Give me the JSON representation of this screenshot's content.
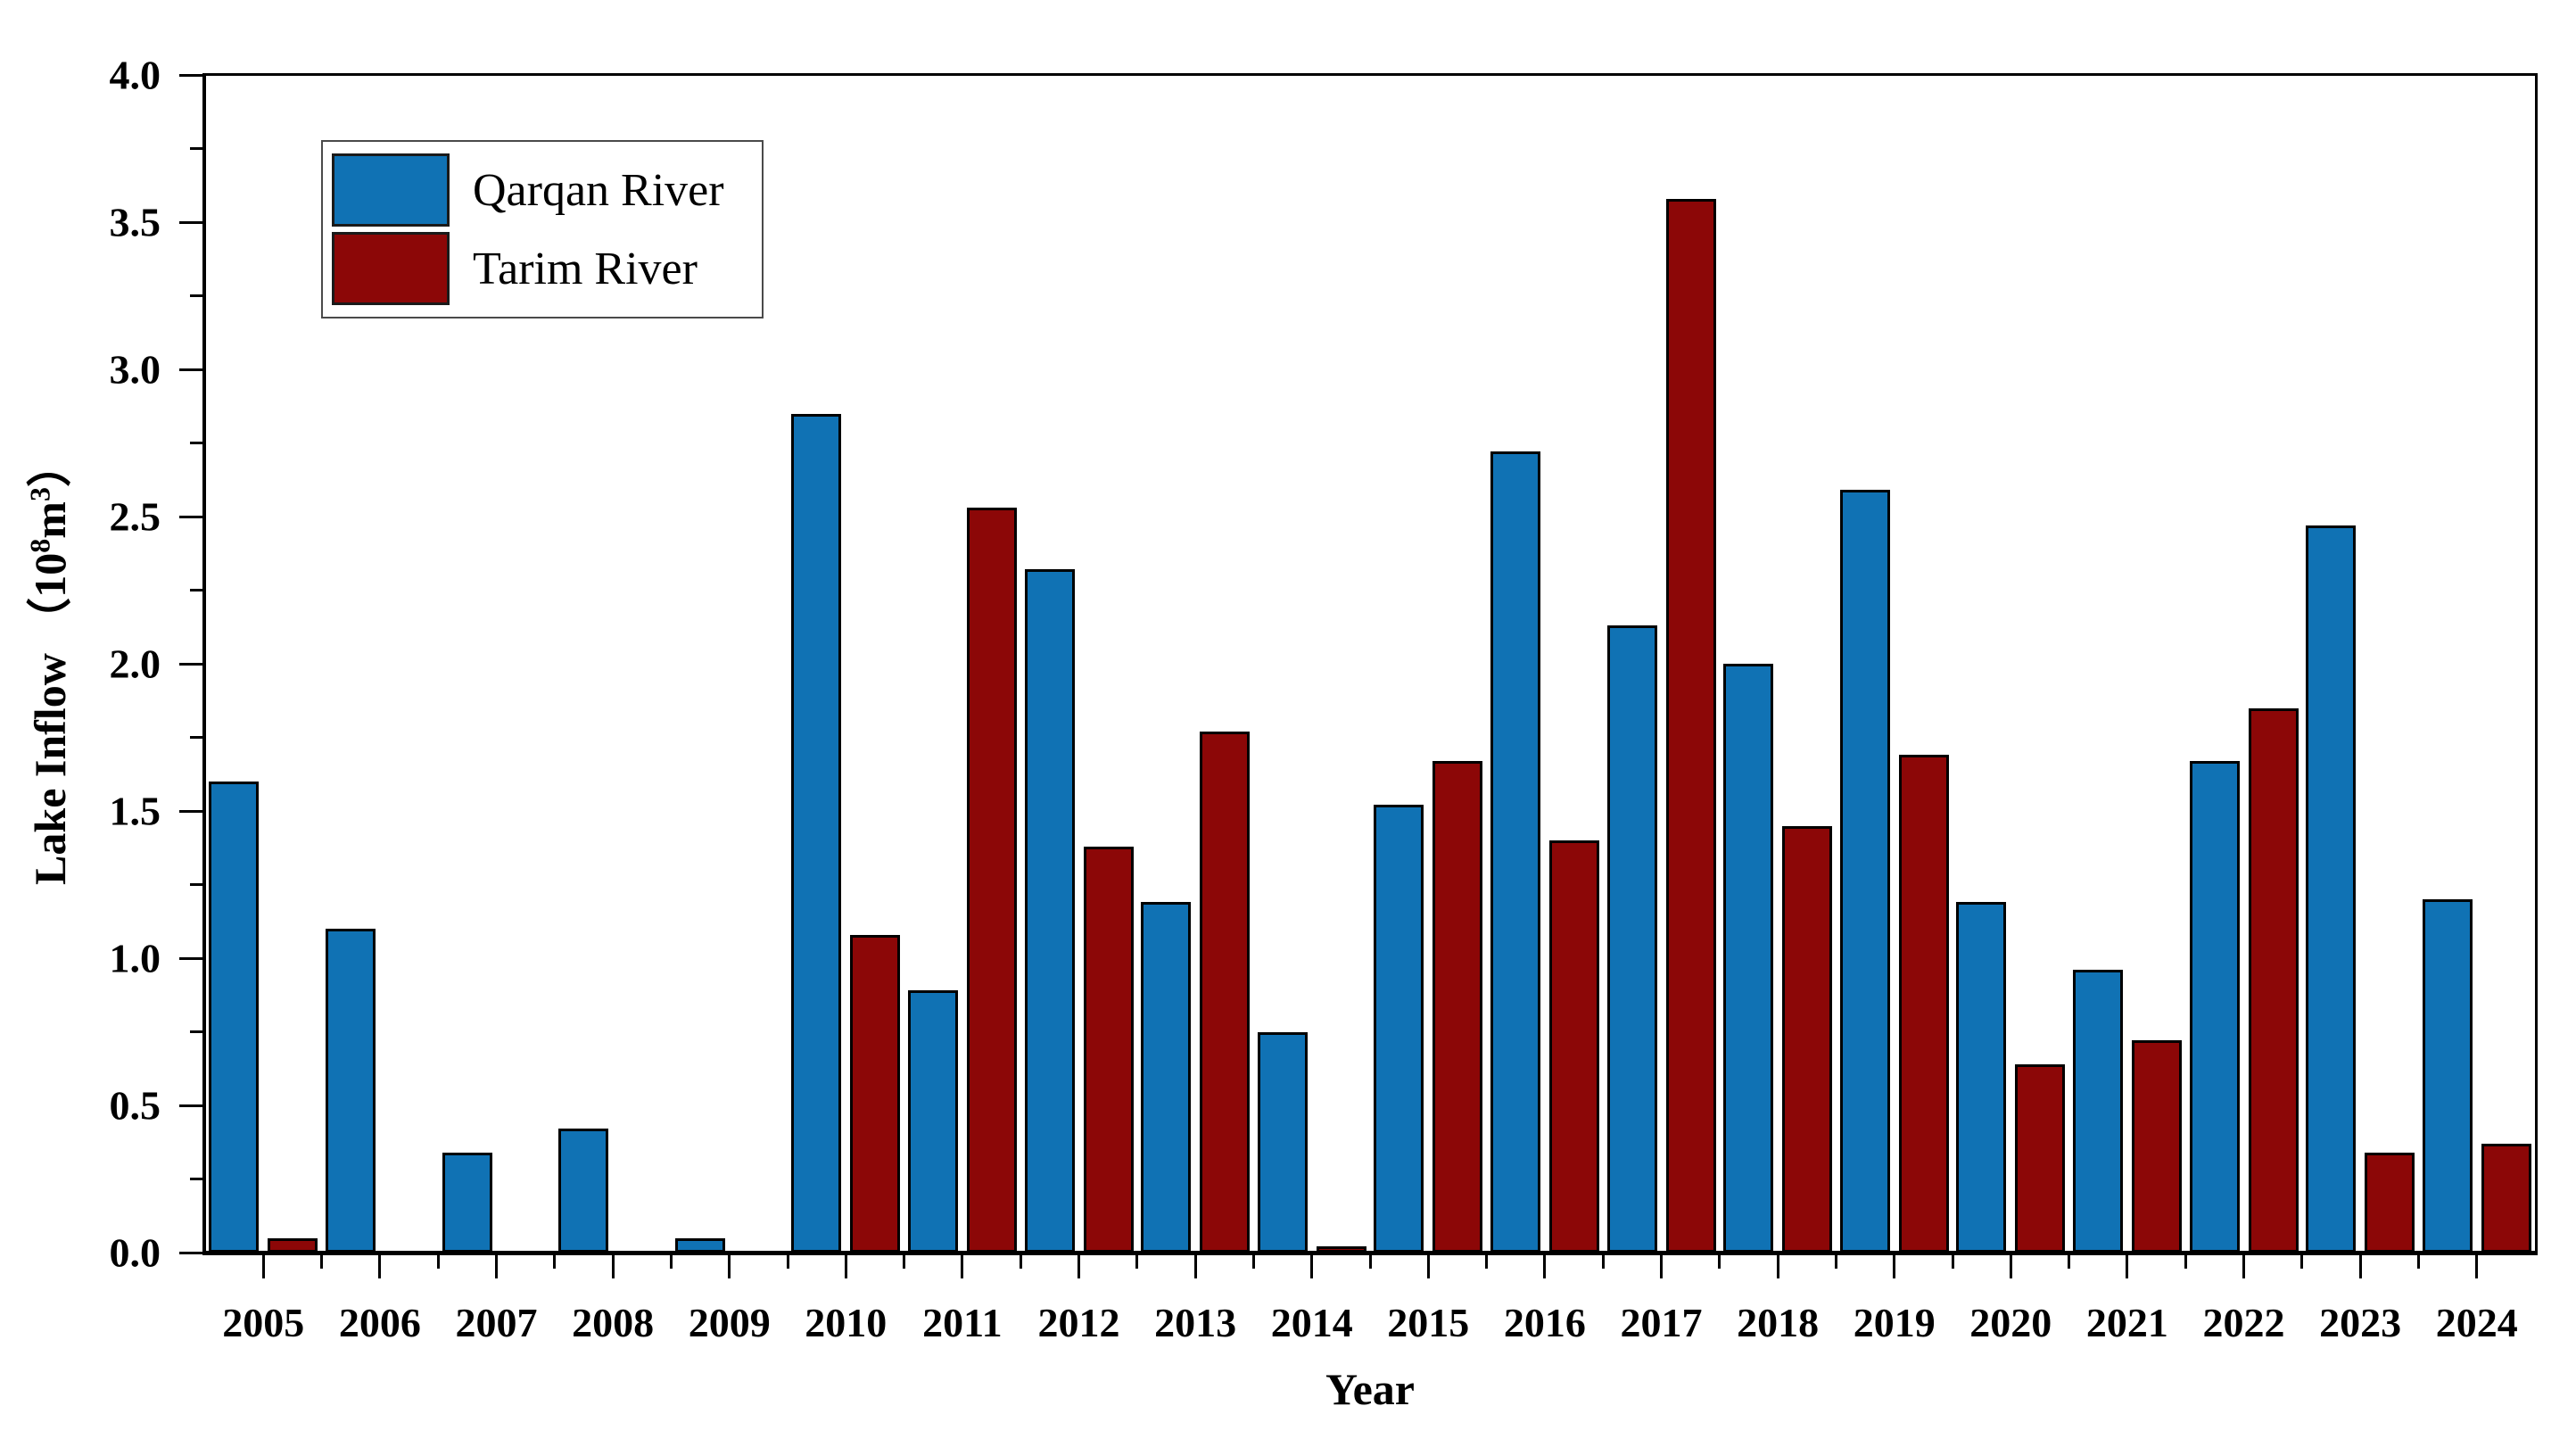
{
  "chart_data": {
    "type": "bar",
    "title": "",
    "xlabel": "Year",
    "ylabel": "Lake Inflow （10^8 m^3）",
    "ylim": [
      0.0,
      4.0
    ],
    "y_major_step": 0.5,
    "y_minor_step": 0.25,
    "y_ticks": [
      "0.0",
      "0.5",
      "1.0",
      "1.5",
      "2.0",
      "2.5",
      "3.0",
      "3.5",
      "4.0"
    ],
    "grid": "off",
    "legend_position": "upper-left",
    "categories": [
      "2005",
      "2006",
      "2007",
      "2008",
      "2009",
      "2010",
      "2011",
      "2012",
      "2013",
      "2014",
      "2015",
      "2016",
      "2017",
      "2018",
      "2019",
      "2020",
      "2021",
      "2022",
      "2023",
      "2024"
    ],
    "series": [
      {
        "name": "Qarqan River",
        "color": "#1072b4",
        "values": [
          1.6,
          1.1,
          0.34,
          0.42,
          0.05,
          2.85,
          0.89,
          2.32,
          1.19,
          0.75,
          1.52,
          2.72,
          2.13,
          2.0,
          2.59,
          1.19,
          0.96,
          1.67,
          2.47,
          1.2
        ]
      },
      {
        "name": "Tarim River",
        "color": "#8c0707",
        "values": [
          0.05,
          0.0,
          0.0,
          0.0,
          0.0,
          1.08,
          2.53,
          1.38,
          1.77,
          0.02,
          1.67,
          1.4,
          3.58,
          1.45,
          1.69,
          0.64,
          0.72,
          1.85,
          0.34,
          0.37
        ]
      }
    ]
  },
  "axes": {
    "x": {
      "title": "Year"
    },
    "y": {
      "title_parts": {
        "prefix": "Lake Inflow （10",
        "sup1": "8",
        "mid": "m",
        "sup2": "3",
        "suffix": "）"
      }
    }
  }
}
